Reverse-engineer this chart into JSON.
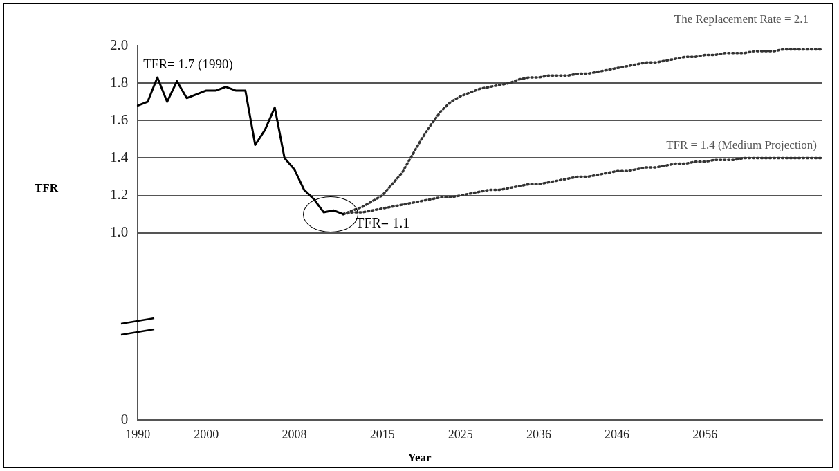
{
  "chart_data": {
    "type": "line",
    "xlabel": "Year",
    "ylabel": "TFR",
    "categories": [
      "1990",
      null,
      null,
      null,
      null,
      null,
      null,
      "2000",
      null,
      null,
      null,
      null,
      null,
      null,
      null,
      null,
      "2008",
      null,
      null,
      null,
      null,
      null,
      null,
      null,
      null,
      "2015",
      null,
      null,
      null,
      null,
      null,
      null,
      null,
      "2025",
      null,
      null,
      null,
      null,
      null,
      null,
      null,
      "2036",
      null,
      null,
      null,
      null,
      null,
      null,
      null,
      "2046",
      null,
      null,
      null,
      null,
      null,
      null,
      null,
      null,
      "2056",
      null,
      null,
      null,
      null,
      null,
      null,
      null,
      null,
      null,
      null,
      null,
      null
    ],
    "series": [
      {
        "color": "#000000",
        "line_style": "solid",
        "values": [
          1.68,
          1.7,
          1.83,
          1.7,
          1.81,
          1.72,
          1.74,
          1.76,
          1.76,
          1.78,
          1.76,
          1.76,
          1.47,
          1.55,
          1.67,
          1.4,
          1.34,
          1.23,
          1.18,
          1.11,
          1.12,
          1.1,
          null,
          null,
          null,
          null,
          null,
          null,
          null,
          null,
          null,
          null,
          null,
          null,
          null,
          null,
          null,
          null,
          null,
          null,
          null,
          null,
          null,
          null,
          null,
          null,
          null,
          null,
          null,
          null,
          null,
          null,
          null,
          null,
          null,
          null,
          null,
          null,
          null,
          null,
          null,
          null,
          null,
          null,
          null,
          null,
          null,
          null,
          null,
          null,
          null
        ]
      },
      {
        "color": "#333333",
        "line_style": "dotted",
        "values": [
          null,
          null,
          null,
          null,
          null,
          null,
          null,
          null,
          null,
          null,
          null,
          null,
          null,
          null,
          null,
          null,
          null,
          null,
          null,
          null,
          null,
          1.1,
          1.12,
          1.14,
          1.17,
          1.2,
          1.26,
          1.32,
          1.41,
          1.5,
          1.58,
          1.65,
          1.7,
          1.73,
          1.75,
          1.77,
          1.78,
          1.79,
          1.8,
          1.82,
          1.83,
          1.83,
          1.84,
          1.84,
          1.84,
          1.85,
          1.85,
          1.86,
          1.87,
          1.88,
          1.89,
          1.9,
          1.91,
          1.91,
          1.92,
          1.93,
          1.94,
          1.94,
          1.95,
          1.95,
          1.96,
          1.96,
          1.96,
          1.97,
          1.97,
          1.97,
          1.98,
          1.98,
          1.98,
          1.98,
          1.98
        ]
      },
      {
        "color": "#333333",
        "line_style": "dotted",
        "values": [
          null,
          null,
          null,
          null,
          null,
          null,
          null,
          null,
          null,
          null,
          null,
          null,
          null,
          null,
          null,
          null,
          null,
          null,
          null,
          null,
          null,
          1.1,
          1.11,
          1.11,
          1.12,
          1.13,
          1.14,
          1.15,
          1.16,
          1.17,
          1.18,
          1.19,
          1.19,
          1.2,
          1.21,
          1.22,
          1.23,
          1.23,
          1.24,
          1.25,
          1.26,
          1.26,
          1.27,
          1.28,
          1.29,
          1.3,
          1.3,
          1.31,
          1.32,
          1.33,
          1.33,
          1.34,
          1.35,
          1.35,
          1.36,
          1.37,
          1.37,
          1.38,
          1.38,
          1.39,
          1.39,
          1.39,
          1.4,
          1.4,
          1.4,
          1.4,
          1.4,
          1.4,
          1.4,
          1.4,
          1.4
        ]
      }
    ],
    "ylim": [
      0,
      2.0
    ],
    "yticks": [
      0,
      {
        "value": 1,
        "label": "1.0"
      },
      1.2,
      1.4,
      1.6,
      1.8,
      {
        "value": 2,
        "label": "2.0"
      }
    ],
    "grid": "y",
    "legend": false,
    "marker": "none",
    "annotations": [
      "TFR= 1.7 (1990)",
      "The Replacement Rate = 2.1",
      "TFR = 1.4 (Medium Projection)",
      "TFR= 1.1"
    ]
  }
}
